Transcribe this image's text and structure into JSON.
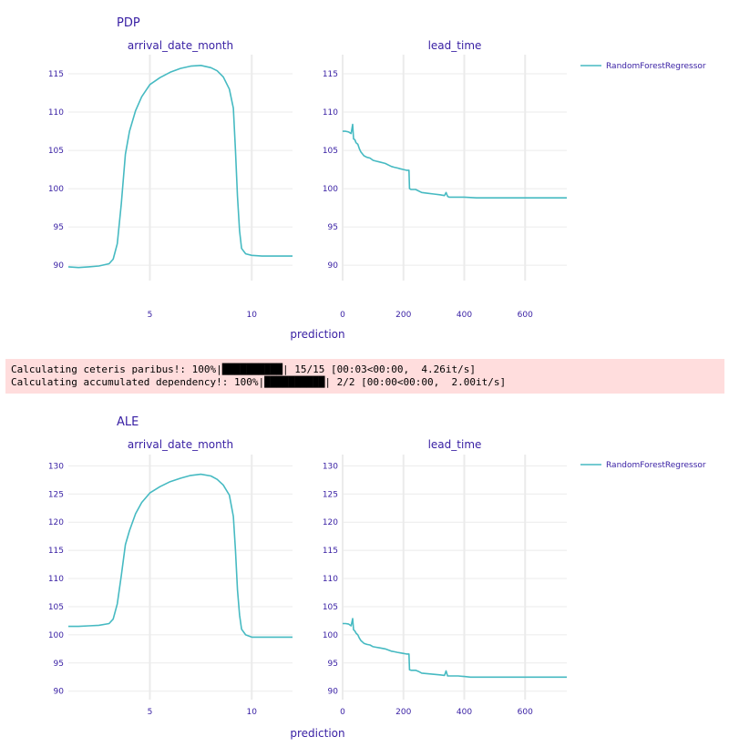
{
  "progress": [
    {
      "label": "Calculating ceteris paribus!: 100%",
      "stats": " 15/15 [00:03<00:00,  4.26it/s]",
      "fraction": 1.0
    },
    {
      "label": "Calculating accumulated dependency!: 100%",
      "stats": " 2/2 [00:00<00:00,  2.00it/s]",
      "fraction": 1.0
    }
  ],
  "chart_data": [
    {
      "type": "line",
      "title": "PDP",
      "xlabel": "prediction",
      "legend": {
        "placement": "top-right",
        "entries": [
          "RandomForestRegressor"
        ]
      },
      "color": "#46bac2",
      "ylim": [
        88,
        117.5
      ],
      "yticks": [
        90,
        95,
        100,
        105,
        110,
        115
      ],
      "panels": [
        {
          "subtitle": "arrival_date_month",
          "xlim": [
            1,
            12
          ],
          "xticks": [
            5,
            10
          ],
          "series": [
            {
              "name": "RandomForestRegressor",
              "x": [
                1,
                1.5,
                2,
                2.5,
                3,
                3.2,
                3.4,
                3.6,
                3.8,
                4.0,
                4.3,
                4.6,
                5.0,
                5.5,
                6.0,
                6.5,
                7.0,
                7.5,
                8.0,
                8.3,
                8.6,
                8.9,
                9.1,
                9.2,
                9.3,
                9.4,
                9.5,
                9.7,
                10.0,
                10.5,
                11.0,
                12.0
              ],
              "y": [
                89.8,
                89.7,
                89.8,
                89.9,
                90.2,
                90.8,
                92.8,
                98.0,
                104.5,
                107.5,
                110.2,
                112.0,
                113.6,
                114.5,
                115.2,
                115.7,
                116.0,
                116.1,
                115.8,
                115.4,
                114.6,
                113.0,
                110.5,
                105.0,
                99.0,
                94.5,
                92.2,
                91.5,
                91.3,
                91.2,
                91.2,
                91.2
              ]
            }
          ]
        },
        {
          "subtitle": "lead_time",
          "xlim": [
            0,
            737
          ],
          "xticks": [
            0,
            200,
            400,
            600
          ],
          "series": [
            {
              "name": "RandomForestRegressor",
              "x": [
                0,
                10,
                20,
                28,
                33,
                36,
                40,
                44,
                50,
                55,
                60,
                70,
                80,
                90,
                100,
                110,
                120,
                140,
                160,
                170,
                180,
                190,
                200,
                210,
                218,
                220,
                225,
                240,
                250,
                260,
                280,
                300,
                320,
                335,
                340,
                345,
                350,
                360,
                380,
                400,
                420,
                440,
                500,
                600,
                737
              ],
              "y": [
                107.5,
                107.5,
                107.4,
                107.2,
                108.4,
                106.5,
                106.4,
                106.0,
                105.8,
                105.2,
                104.8,
                104.3,
                104.1,
                104.0,
                103.7,
                103.6,
                103.5,
                103.3,
                102.9,
                102.8,
                102.7,
                102.6,
                102.5,
                102.4,
                102.4,
                100.0,
                99.9,
                99.9,
                99.7,
                99.5,
                99.4,
                99.3,
                99.2,
                99.1,
                99.5,
                99.0,
                98.9,
                98.9,
                98.9,
                98.9,
                98.85,
                98.8,
                98.8,
                98.8,
                98.8
              ]
            }
          ]
        }
      ]
    },
    {
      "type": "line",
      "title": "ALE",
      "xlabel": "prediction",
      "legend": {
        "placement": "top-right",
        "entries": [
          "RandomForestRegressor"
        ]
      },
      "color": "#46bac2",
      "ylim": [
        88.5,
        132
      ],
      "yticks": [
        90,
        95,
        100,
        105,
        110,
        115,
        120,
        125,
        130
      ],
      "panels": [
        {
          "subtitle": "arrival_date_month",
          "xlim": [
            1,
            12
          ],
          "xticks": [
            5,
            10
          ],
          "series": [
            {
              "name": "RandomForestRegressor",
              "x": [
                1,
                1.5,
                2,
                2.5,
                3,
                3.2,
                3.4,
                3.6,
                3.8,
                4.0,
                4.3,
                4.6,
                5.0,
                5.5,
                6.0,
                6.5,
                7.0,
                7.5,
                8.0,
                8.3,
                8.6,
                8.9,
                9.1,
                9.2,
                9.3,
                9.4,
                9.5,
                9.7,
                10.0,
                10.5,
                11.0,
                12.0
              ],
              "y": [
                101.5,
                101.5,
                101.6,
                101.7,
                102.0,
                102.8,
                105.5,
                110.5,
                116.0,
                118.5,
                121.5,
                123.5,
                125.2,
                126.3,
                127.2,
                127.8,
                128.3,
                128.5,
                128.2,
                127.6,
                126.6,
                124.8,
                121.0,
                115.0,
                108.0,
                103.5,
                101.0,
                100.0,
                99.6,
                99.6,
                99.6,
                99.6
              ]
            }
          ]
        },
        {
          "subtitle": "lead_time",
          "xlim": [
            0,
            737
          ],
          "xticks": [
            0,
            200,
            400,
            600
          ],
          "series": [
            {
              "name": "RandomForestRegressor",
              "x": [
                0,
                10,
                20,
                28,
                33,
                36,
                40,
                44,
                50,
                55,
                60,
                70,
                80,
                90,
                100,
                110,
                120,
                140,
                160,
                170,
                180,
                190,
                200,
                210,
                218,
                220,
                225,
                240,
                250,
                260,
                280,
                300,
                320,
                335,
                340,
                345,
                350,
                360,
                380,
                400,
                420,
                440,
                500,
                600,
                737
              ],
              "y": [
                102.0,
                102.0,
                101.9,
                101.6,
                102.9,
                100.9,
                100.7,
                100.3,
                100.0,
                99.4,
                99.0,
                98.5,
                98.3,
                98.2,
                97.9,
                97.8,
                97.7,
                97.5,
                97.1,
                97.0,
                96.9,
                96.8,
                96.7,
                96.6,
                96.6,
                93.8,
                93.7,
                93.7,
                93.5,
                93.2,
                93.1,
                93.0,
                92.9,
                92.8,
                93.6,
                92.7,
                92.7,
                92.7,
                92.7,
                92.6,
                92.5,
                92.5,
                92.5,
                92.5,
                92.5
              ]
            }
          ]
        }
      ]
    }
  ]
}
